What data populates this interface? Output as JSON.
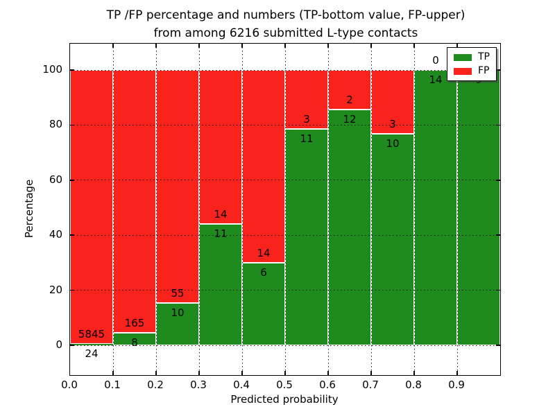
{
  "title": {
    "line1": "TP /FP percentage and numbers (TP-bottom value, FP-upper)",
    "line2": "from among 6216 submitted L-type contacts"
  },
  "axes": {
    "xlabel": "Predicted probability",
    "ylabel": "Percentage"
  },
  "legend": {
    "items": [
      {
        "label": "TP",
        "color": "#1f8b1f"
      },
      {
        "label": "FP",
        "color": "#f8231c"
      }
    ]
  },
  "colors": {
    "tp_green": "#1f8b1f",
    "fp_red": "#f8231c",
    "grid": "#141414",
    "background": "#ffffff"
  },
  "chart_data": {
    "type": "bar",
    "stacked": true,
    "normalized_to_percent": true,
    "title": "TP /FP percentage and numbers (TP-bottom value, FP-upper) from among 6216 submitted L-type contacts",
    "xlabel": "Predicted probability",
    "ylabel": "Percentage",
    "total_submitted": 6216,
    "bin_edges": [
      0.0,
      0.1,
      0.2,
      0.3,
      0.4,
      0.5,
      0.6,
      0.7,
      0.8,
      0.9,
      1.0
    ],
    "categories": [
      "0.0-0.1",
      "0.1-0.2",
      "0.2-0.3",
      "0.3-0.4",
      "0.4-0.5",
      "0.5-0.6",
      "0.6-0.7",
      "0.7-0.8",
      "0.8-0.9",
      "0.9-1.0"
    ],
    "series": [
      {
        "name": "TP",
        "color": "#1f8b1f",
        "counts": [
          24,
          8,
          10,
          11,
          6,
          11,
          12,
          10,
          14,
          9
        ]
      },
      {
        "name": "FP",
        "color": "#f8231c",
        "counts": [
          5845,
          165,
          55,
          14,
          14,
          3,
          2,
          3,
          0,
          0
        ]
      }
    ],
    "tp_percent": [
      0.41,
      4.62,
      15.38,
      44.0,
      30.0,
      78.57,
      85.71,
      76.92,
      100.0,
      100.0
    ],
    "xticks": [
      "0.0",
      "0.1",
      "0.2",
      "0.3",
      "0.4",
      "0.5",
      "0.6",
      "0.7",
      "0.8",
      "0.9"
    ],
    "yticks": [
      0,
      20,
      40,
      60,
      80,
      100
    ],
    "ylim": [
      -11,
      110
    ],
    "grid": "dotted",
    "legend_position": "upper right",
    "note_last_fp_label_occluded_by_legend": true
  }
}
